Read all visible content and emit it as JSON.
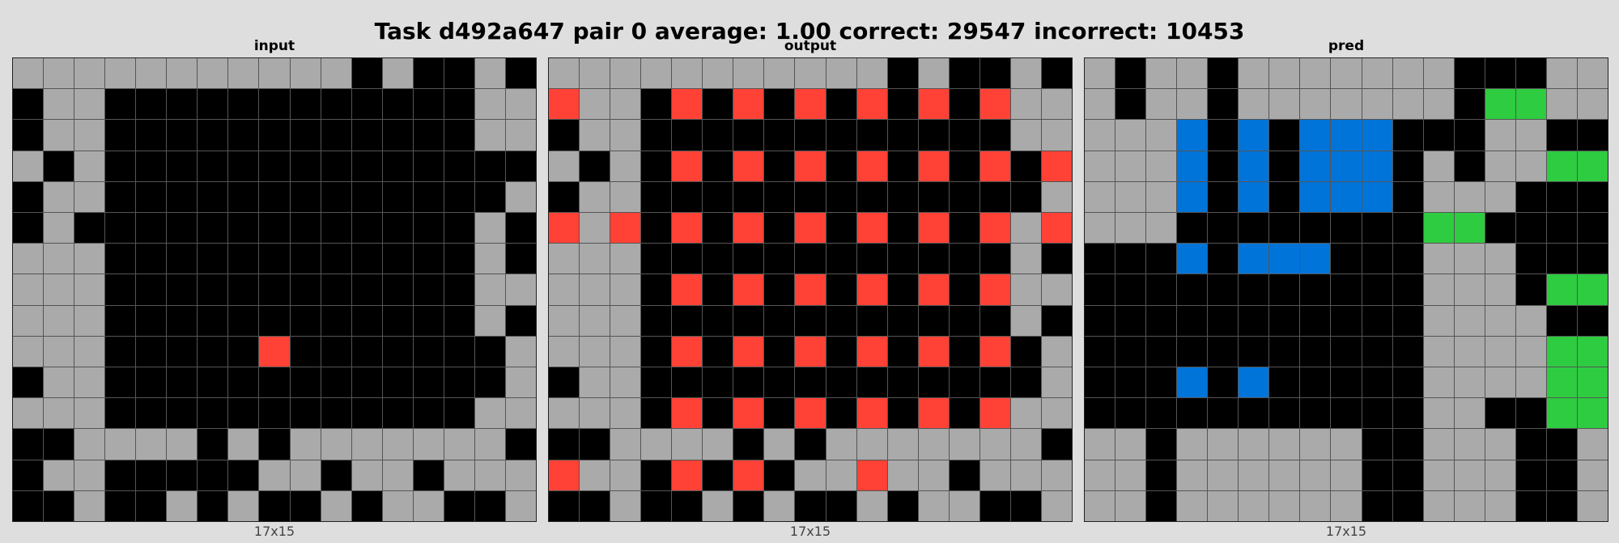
{
  "title": "Task d492a647 pair 0 average: 1.00 correct: 29547 incorrect: 10453",
  "colors": {
    "0": "#000000",
    "1": "#0074D9",
    "2": "#FF4136",
    "3": "#2ECC40",
    "5": "#AAAAAA"
  },
  "panels": [
    {
      "label": "input",
      "dims": "17x15",
      "grid": [
        [
          5,
          5,
          5,
          5,
          5,
          5,
          5,
          5,
          5,
          5,
          5,
          0,
          5,
          0,
          0,
          5,
          0
        ],
        [
          0,
          5,
          5,
          0,
          0,
          0,
          0,
          0,
          0,
          0,
          0,
          0,
          0,
          0,
          0,
          5,
          5
        ],
        [
          0,
          5,
          5,
          0,
          0,
          0,
          0,
          0,
          0,
          0,
          0,
          0,
          0,
          0,
          0,
          5,
          5
        ],
        [
          5,
          0,
          5,
          0,
          0,
          0,
          0,
          0,
          0,
          0,
          0,
          0,
          0,
          0,
          0,
          0,
          0
        ],
        [
          0,
          5,
          5,
          0,
          0,
          0,
          0,
          0,
          0,
          0,
          0,
          0,
          0,
          0,
          0,
          0,
          5
        ],
        [
          0,
          5,
          0,
          0,
          0,
          0,
          0,
          0,
          0,
          0,
          0,
          0,
          0,
          0,
          0,
          5,
          0
        ],
        [
          5,
          5,
          5,
          0,
          0,
          0,
          0,
          0,
          0,
          0,
          0,
          0,
          0,
          0,
          0,
          5,
          0
        ],
        [
          5,
          5,
          5,
          0,
          0,
          0,
          0,
          0,
          0,
          0,
          0,
          0,
          0,
          0,
          0,
          5,
          5
        ],
        [
          5,
          5,
          5,
          0,
          0,
          0,
          0,
          0,
          0,
          0,
          0,
          0,
          0,
          0,
          0,
          5,
          0
        ],
        [
          5,
          5,
          5,
          0,
          0,
          0,
          0,
          0,
          2,
          0,
          0,
          0,
          0,
          0,
          0,
          0,
          5
        ],
        [
          0,
          5,
          5,
          0,
          0,
          0,
          0,
          0,
          0,
          0,
          0,
          0,
          0,
          0,
          0,
          0,
          5
        ],
        [
          5,
          5,
          5,
          0,
          0,
          0,
          0,
          0,
          0,
          0,
          0,
          0,
          0,
          0,
          0,
          5,
          5
        ],
        [
          0,
          0,
          5,
          5,
          5,
          5,
          0,
          5,
          0,
          5,
          5,
          5,
          5,
          5,
          5,
          5,
          0
        ],
        [
          0,
          5,
          5,
          0,
          0,
          0,
          0,
          0,
          5,
          5,
          0,
          5,
          5,
          0,
          5,
          5,
          5
        ],
        [
          0,
          0,
          5,
          0,
          0,
          5,
          0,
          5,
          0,
          0,
          5,
          0,
          5,
          5,
          0,
          0,
          5
        ]
      ]
    },
    {
      "label": "output",
      "dims": "17x15",
      "grid": [
        [
          5,
          5,
          5,
          5,
          5,
          5,
          5,
          5,
          5,
          5,
          5,
          0,
          5,
          0,
          0,
          5,
          0
        ],
        [
          2,
          5,
          5,
          0,
          2,
          0,
          2,
          0,
          2,
          0,
          2,
          0,
          2,
          0,
          2,
          5,
          5
        ],
        [
          0,
          5,
          5,
          0,
          0,
          0,
          0,
          0,
          0,
          0,
          0,
          0,
          0,
          0,
          0,
          5,
          5
        ],
        [
          5,
          0,
          5,
          0,
          2,
          0,
          2,
          0,
          2,
          0,
          2,
          0,
          2,
          0,
          2,
          0,
          2
        ],
        [
          0,
          5,
          5,
          0,
          0,
          0,
          0,
          0,
          0,
          0,
          0,
          0,
          0,
          0,
          0,
          0,
          5
        ],
        [
          2,
          5,
          2,
          0,
          2,
          0,
          2,
          0,
          2,
          0,
          2,
          0,
          2,
          0,
          2,
          5,
          2
        ],
        [
          5,
          5,
          5,
          0,
          0,
          0,
          0,
          0,
          0,
          0,
          0,
          0,
          0,
          0,
          0,
          5,
          0
        ],
        [
          5,
          5,
          5,
          0,
          2,
          0,
          2,
          0,
          2,
          0,
          2,
          0,
          2,
          0,
          2,
          5,
          5
        ],
        [
          5,
          5,
          5,
          0,
          0,
          0,
          0,
          0,
          0,
          0,
          0,
          0,
          0,
          0,
          0,
          5,
          0
        ],
        [
          5,
          5,
          5,
          0,
          2,
          0,
          2,
          0,
          2,
          0,
          2,
          0,
          2,
          0,
          2,
          0,
          5
        ],
        [
          0,
          5,
          5,
          0,
          0,
          0,
          0,
          0,
          0,
          0,
          0,
          0,
          0,
          0,
          0,
          0,
          5
        ],
        [
          5,
          5,
          5,
          0,
          2,
          0,
          2,
          0,
          2,
          0,
          2,
          0,
          2,
          0,
          2,
          5,
          5
        ],
        [
          0,
          0,
          5,
          5,
          5,
          5,
          0,
          5,
          0,
          5,
          5,
          5,
          5,
          5,
          5,
          5,
          0
        ],
        [
          2,
          5,
          5,
          0,
          2,
          0,
          2,
          0,
          5,
          5,
          2,
          5,
          5,
          0,
          5,
          5,
          5
        ],
        [
          0,
          0,
          5,
          0,
          0,
          5,
          0,
          5,
          0,
          0,
          5,
          0,
          5,
          5,
          0,
          0,
          5
        ]
      ]
    },
    {
      "label": "pred",
      "dims": "17x15",
      "grid": [
        [
          5,
          0,
          5,
          5,
          0,
          5,
          5,
          5,
          5,
          5,
          5,
          5,
          0,
          0,
          0,
          5,
          5
        ],
        [
          5,
          0,
          5,
          5,
          0,
          5,
          5,
          5,
          5,
          5,
          5,
          5,
          0,
          3,
          3,
          5,
          5
        ],
        [
          5,
          5,
          5,
          1,
          0,
          1,
          0,
          1,
          1,
          1,
          0,
          0,
          0,
          5,
          5,
          0,
          0
        ],
        [
          5,
          5,
          5,
          1,
          0,
          1,
          0,
          1,
          1,
          1,
          0,
          5,
          0,
          5,
          5,
          3,
          3
        ],
        [
          5,
          5,
          5,
          1,
          0,
          1,
          0,
          1,
          1,
          1,
          0,
          5,
          5,
          5,
          0,
          0,
          0
        ],
        [
          5,
          5,
          5,
          0,
          0,
          0,
          0,
          0,
          0,
          0,
          0,
          3,
          3,
          0,
          0,
          0,
          0
        ],
        [
          0,
          0,
          0,
          1,
          0,
          1,
          1,
          1,
          0,
          0,
          0,
          5,
          5,
          5,
          0,
          0,
          0
        ],
        [
          0,
          0,
          0,
          0,
          0,
          0,
          0,
          0,
          0,
          0,
          0,
          5,
          5,
          5,
          0,
          3,
          3
        ],
        [
          0,
          0,
          0,
          0,
          0,
          0,
          0,
          0,
          0,
          0,
          0,
          5,
          5,
          5,
          5,
          0,
          0
        ],
        [
          0,
          0,
          0,
          0,
          0,
          0,
          0,
          0,
          0,
          0,
          0,
          5,
          5,
          5,
          5,
          3,
          3
        ],
        [
          0,
          0,
          0,
          1,
          0,
          1,
          0,
          0,
          0,
          0,
          0,
          5,
          5,
          5,
          5,
          3,
          3
        ],
        [
          0,
          0,
          0,
          0,
          0,
          0,
          0,
          0,
          0,
          0,
          0,
          5,
          5,
          0,
          0,
          3,
          3
        ],
        [
          5,
          5,
          0,
          5,
          5,
          5,
          5,
          5,
          5,
          0,
          0,
          5,
          5,
          5,
          0,
          0,
          5
        ],
        [
          5,
          5,
          0,
          5,
          5,
          5,
          5,
          5,
          5,
          0,
          0,
          5,
          5,
          5,
          0,
          0,
          5
        ],
        [
          5,
          5,
          0,
          5,
          5,
          5,
          5,
          5,
          5,
          0,
          0,
          5,
          5,
          5,
          0,
          0,
          5
        ]
      ]
    }
  ]
}
